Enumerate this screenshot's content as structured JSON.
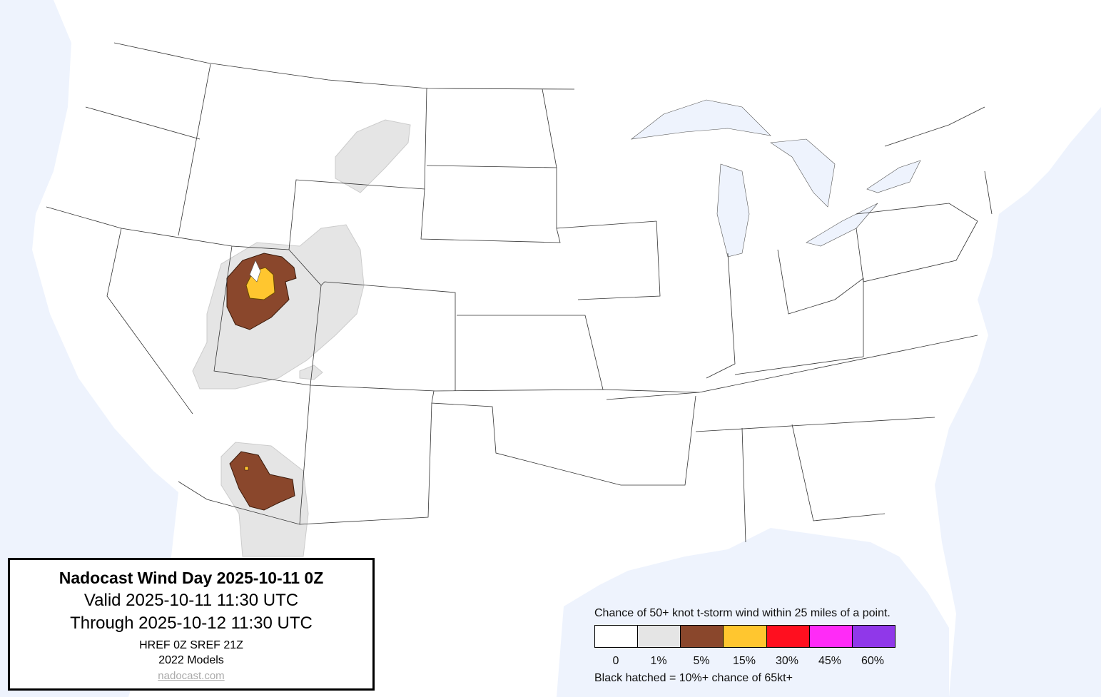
{
  "title": {
    "heading": "Nadocast Wind Day 2025-10-11 0Z",
    "valid": "Valid 2025-10-11 11:30 UTC",
    "through": "Through 2025-10-12 11:30 UTC",
    "models": "HREF 0Z SREF 21Z",
    "model_version": "2022 Models",
    "link": "nadocast.com"
  },
  "legend": {
    "caption": "Chance of 50+ knot t-storm wind within 25 miles of a point.",
    "levels": [
      {
        "label": "0",
        "color": "#ffffff"
      },
      {
        "label": "1%",
        "color": "#e5e5e5"
      },
      {
        "label": "5%",
        "color": "#8a472c"
      },
      {
        "label": "15%",
        "color": "#ffc62f"
      },
      {
        "label": "30%",
        "color": "#ff0f1f"
      },
      {
        "label": "45%",
        "color": "#ff2bf7"
      },
      {
        "label": "60%",
        "color": "#9038e9"
      }
    ],
    "note": "Black hatched = 10%+ chance of 65kt+"
  },
  "colors": {
    "water": "#eef3fd",
    "land": "#ffffff",
    "borders": "#333333"
  }
}
